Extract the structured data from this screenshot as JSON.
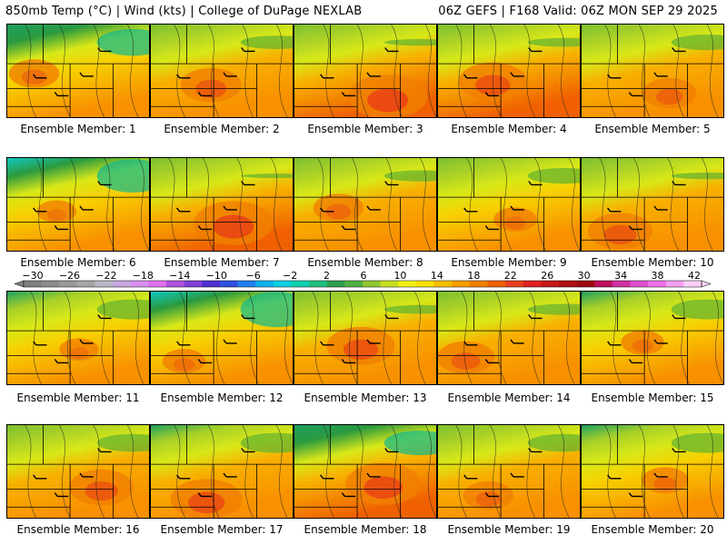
{
  "header": {
    "left": "850mb Temp (°C) | Wind (kts) | College of DuPage NEXLAB",
    "right": "06Z GEFS | F168 Valid: 06Z MON SEP 29 2025"
  },
  "members": [
    {
      "label": "Ensemble Member: 1",
      "warmth": 0.55,
      "cool": 0.6,
      "hot": 0.45
    },
    {
      "label": "Ensemble Member: 2",
      "warmth": 0.7,
      "cool": 0.3,
      "hot": 0.6
    },
    {
      "label": "Ensemble Member: 3",
      "warmth": 0.8,
      "cool": 0.15,
      "hot": 0.85
    },
    {
      "label": "Ensemble Member: 4",
      "warmth": 0.78,
      "cool": 0.2,
      "hot": 0.7
    },
    {
      "label": "Ensemble Member: 5",
      "warmth": 0.62,
      "cool": 0.35,
      "hot": 0.5
    },
    {
      "label": "Ensemble Member: 6",
      "warmth": 0.5,
      "cool": 0.75,
      "hot": 0.3
    },
    {
      "label": "Ensemble Member: 7",
      "warmth": 0.78,
      "cool": 0.1,
      "hot": 0.85
    },
    {
      "label": "Ensemble Member: 8",
      "warmth": 0.62,
      "cool": 0.25,
      "hot": 0.45
    },
    {
      "label": "Ensemble Member: 9",
      "warmth": 0.55,
      "cool": 0.35,
      "hot": 0.35
    },
    {
      "label": "Ensemble Member: 10",
      "warmth": 0.7,
      "cool": 0.15,
      "hot": 0.65
    },
    {
      "label": "Ensemble Member: 11",
      "warmth": 0.58,
      "cool": 0.45,
      "hot": 0.3
    },
    {
      "label": "Ensemble Member: 12",
      "warmth": 0.45,
      "cool": 0.8,
      "hot": 0.35
    },
    {
      "label": "Ensemble Member: 13",
      "warmth": 0.7,
      "cool": 0.2,
      "hot": 0.7
    },
    {
      "label": "Ensemble Member: 14",
      "warmth": 0.68,
      "cool": 0.25,
      "hot": 0.55
    },
    {
      "label": "Ensemble Member: 15",
      "warmth": 0.6,
      "cool": 0.45,
      "hot": 0.35
    },
    {
      "label": "Ensemble Member: 16",
      "warmth": 0.66,
      "cool": 0.4,
      "hot": 0.65
    },
    {
      "label": "Ensemble Member: 17",
      "warmth": 0.7,
      "cool": 0.45,
      "hot": 0.75
    },
    {
      "label": "Ensemble Member: 18",
      "warmth": 0.72,
      "cool": 0.55,
      "hot": 0.8
    },
    {
      "label": "Ensemble Member: 19",
      "warmth": 0.64,
      "cool": 0.4,
      "hot": 0.45
    },
    {
      "label": "Ensemble Member: 20",
      "warmth": 0.6,
      "cool": 0.45,
      "hot": 0.4
    }
  ],
  "colorbar": {
    "labels": [
      "-30",
      "-26",
      "-22",
      "-18",
      "-14",
      "-10",
      "-6",
      "-2",
      "2",
      "6",
      "10",
      "14",
      "18",
      "22",
      "26",
      "30",
      "34",
      "38",
      "42"
    ],
    "colors": [
      "#7f7f7f",
      "#8c8c8c",
      "#999999",
      "#a6a6a6",
      "#b8b8c8",
      "#c8a8e0",
      "#d98ff0",
      "#e070f0",
      "#b050e0",
      "#8040d8",
      "#5030d0",
      "#3050e0",
      "#2080f0",
      "#10b0f0",
      "#10d0e0",
      "#10d0b0",
      "#20c080",
      "#30a050",
      "#50b040",
      "#90c830",
      "#c8e020",
      "#f0f010",
      "#f8e000",
      "#f8c000",
      "#f8a000",
      "#f08000",
      "#f06000",
      "#e84020",
      "#e02020",
      "#c81818",
      "#b01010",
      "#a00810",
      "#c01060",
      "#d030a0",
      "#e050d0",
      "#f070e8",
      "#f8a0f0",
      "#fcd0f8"
    ]
  }
}
